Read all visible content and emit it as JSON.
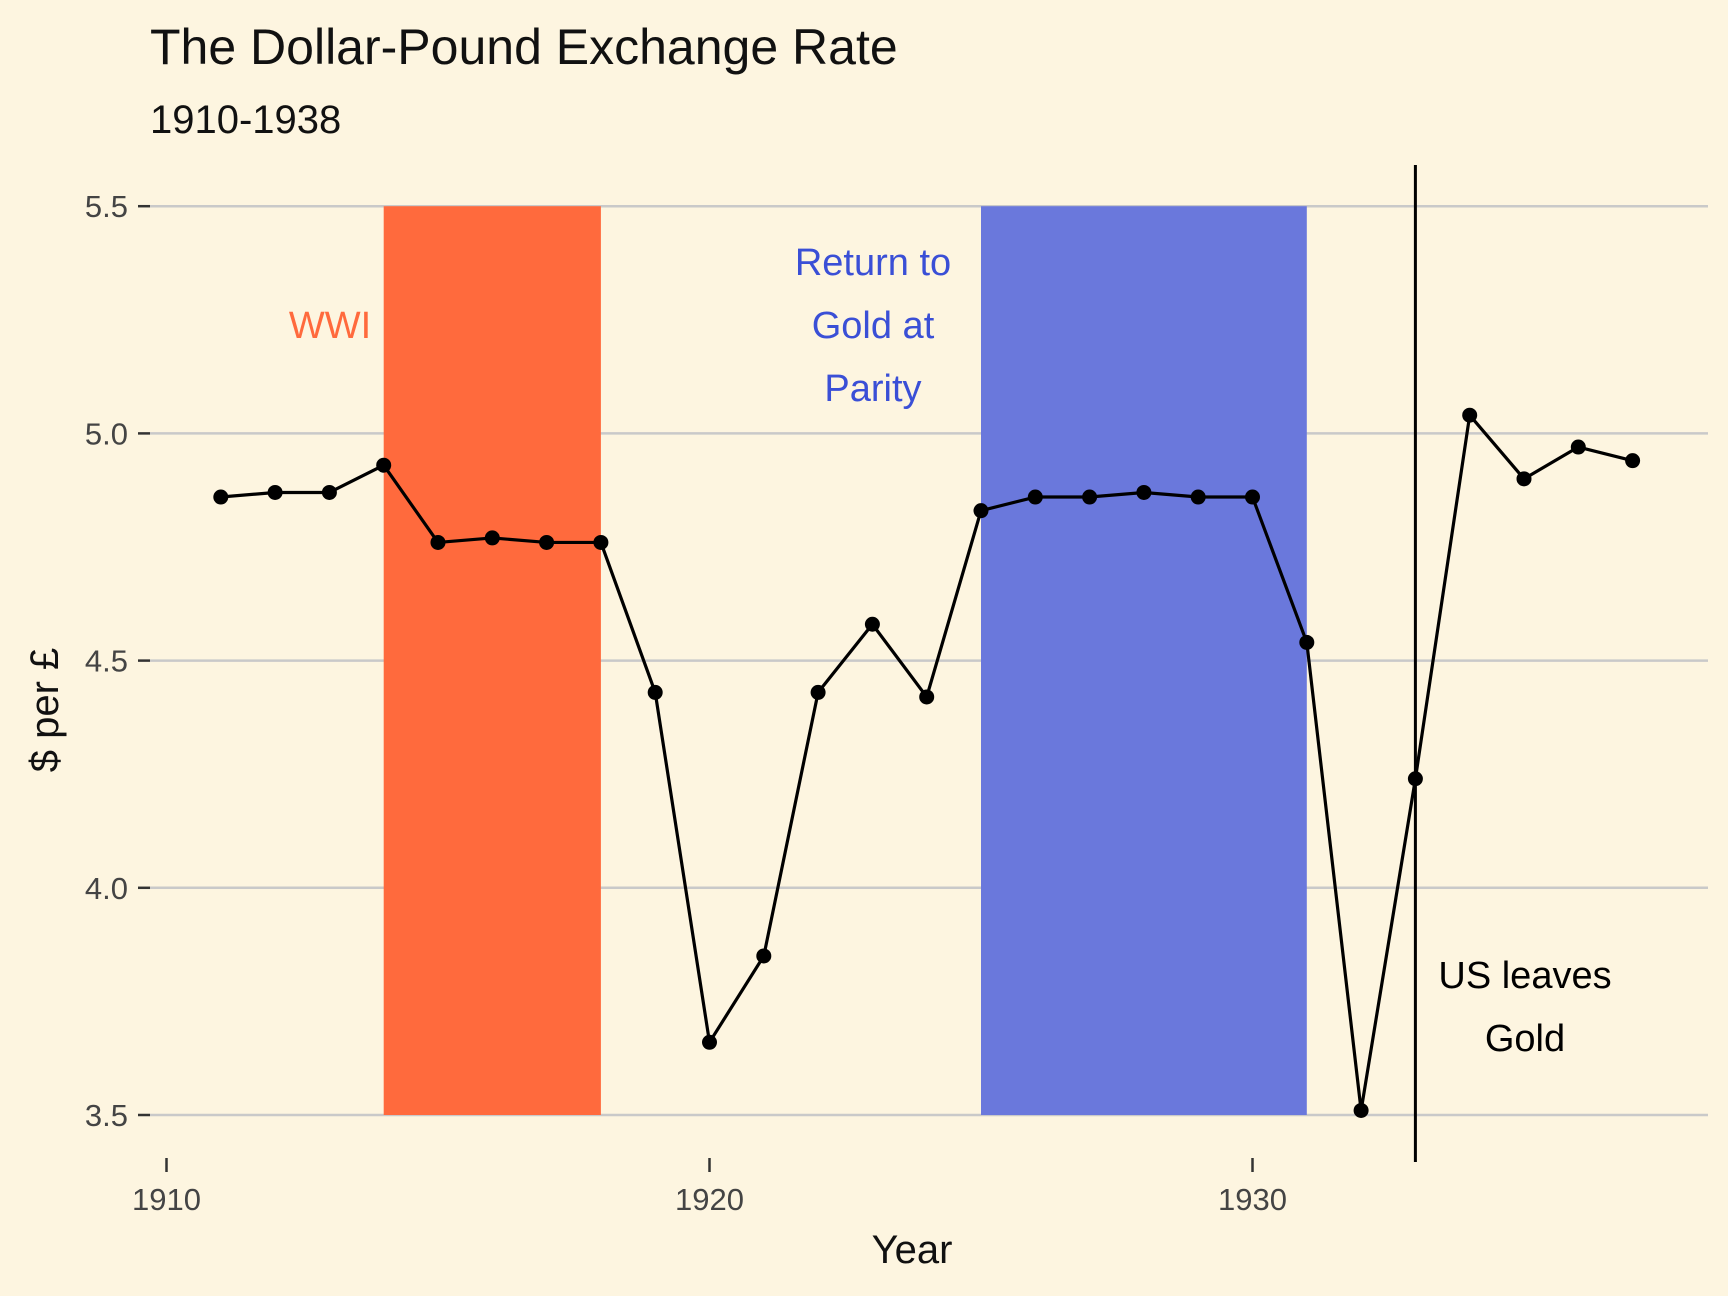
{
  "chart_data": {
    "type": "line",
    "title": "The Dollar-Pound Exchange Rate",
    "subtitle": "1910-1938",
    "xlabel": "Year",
    "ylabel": "$ per £",
    "xlim": [
      1910,
      1938
    ],
    "ylim": [
      3.5,
      5.5
    ],
    "x_ticks": [
      1910,
      1920,
      1930
    ],
    "y_ticks": [
      "3.5",
      "4.0",
      "4.5",
      "5.0",
      "5.5"
    ],
    "grid": "horizontal major lines",
    "series": [
      {
        "x": [
          1911,
          1912,
          1913,
          1914,
          1915,
          1916,
          1917,
          1918,
          1919,
          1920,
          1921,
          1922,
          1923,
          1924,
          1925,
          1926,
          1927,
          1928,
          1929,
          1930,
          1931,
          1932,
          1933,
          1934,
          1935,
          1936,
          1937
        ],
        "y": [
          4.86,
          4.87,
          4.87,
          4.93,
          4.76,
          4.77,
          4.76,
          4.76,
          4.43,
          3.66,
          3.85,
          4.43,
          4.58,
          4.42,
          4.83,
          4.86,
          4.86,
          4.87,
          4.86,
          4.86,
          4.54,
          3.51,
          4.24,
          5.04,
          4.9,
          4.97,
          4.94
        ],
        "color": "#000000"
      }
    ],
    "shaded_regions": [
      {
        "x_start": 1914,
        "x_end": 1918,
        "color": "#ff6a3d",
        "label": "WWI",
        "label_color": "#ff6a3d"
      },
      {
        "x_start": 1925,
        "x_end": 1931,
        "color": "#6a78dc",
        "label_lines": [
          "Return to",
          "Gold at",
          "Parity"
        ],
        "label_color": "#3a4fd6"
      }
    ],
    "vertical_line": {
      "x": 1933,
      "label_lines": [
        "US leaves",
        "Gold"
      ],
      "color": "#000000"
    }
  }
}
